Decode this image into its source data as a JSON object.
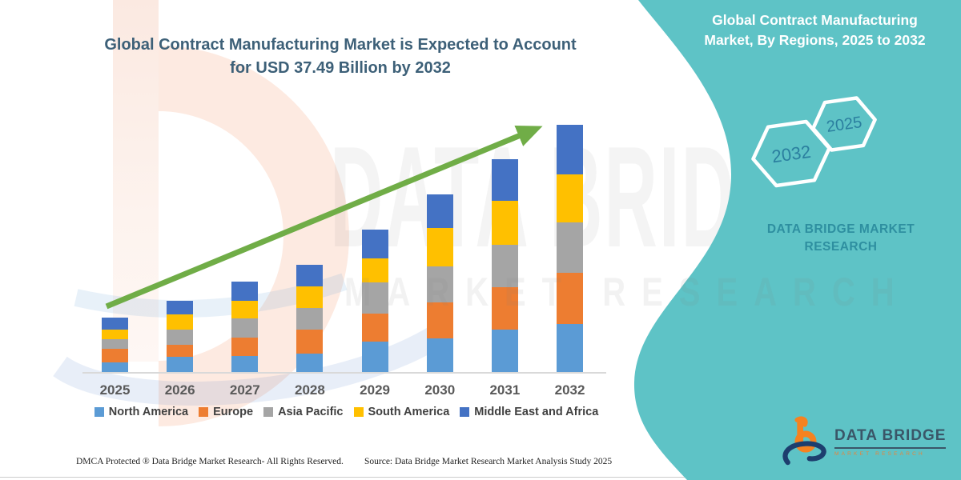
{
  "header": {
    "title_line1": "Global Contract Manufacturing Market is Expected to Account",
    "title_line2": "for USD 37.49 Billion by 2032"
  },
  "chart_data": {
    "type": "bar",
    "stacked": true,
    "title": "Global Contract Manufacturing Market is Expected to Account for USD 37.49 Billion by 2032",
    "unit": "USD Billion",
    "categories": [
      "2025",
      "2026",
      "2027",
      "2028",
      "2029",
      "2030",
      "2031",
      "2032"
    ],
    "series": [
      {
        "name": "North America",
        "color": "#5B9BD5",
        "values": [
          1.46,
          2.31,
          2.43,
          2.79,
          4.61,
          5.1,
          6.43,
          7.28
        ]
      },
      {
        "name": "Europe",
        "color": "#ED7D31",
        "values": [
          2.06,
          1.82,
          2.79,
          3.64,
          4.25,
          5.46,
          6.43,
          7.76
        ]
      },
      {
        "name": "Asia Pacific",
        "color": "#A5A5A5",
        "values": [
          1.46,
          2.31,
          2.91,
          3.28,
          4.73,
          5.46,
          6.43,
          7.64
        ]
      },
      {
        "name": "South America",
        "color": "#FFC000",
        "values": [
          1.46,
          2.31,
          2.67,
          3.28,
          3.64,
          5.82,
          6.67,
          7.28
        ]
      },
      {
        "name": "Middle East and Africa",
        "color": "#4472C4",
        "values": [
          1.82,
          2.06,
          2.91,
          3.28,
          4.37,
          5.1,
          6.31,
          7.53
        ]
      }
    ],
    "totals": [
      8.26,
      10.81,
      13.71,
      16.27,
      21.6,
      26.94,
      32.27,
      37.49
    ],
    "legend_position": "bottom",
    "gridlines": false,
    "trend_arrow": true,
    "trend_arrow_color": "#70AD47"
  },
  "side_panel": {
    "title_line1": "Global Contract Manufacturing",
    "title_line2": "Market, By Regions, 2025 to 2032",
    "hexagons": [
      {
        "label": "2032"
      },
      {
        "label": "2025"
      }
    ],
    "brand_line1": "DATA BRIDGE MARKET",
    "brand_line2": "RESEARCH",
    "accent_color": "#5EC3C6"
  },
  "logo": {
    "name": "DATA BRIDGE",
    "subtitle": "MARKET RESEARCH"
  },
  "watermark": {
    "big_text": "DATA BRIDGE",
    "sub_text": "MARKET RESEARCH"
  },
  "footer": {
    "left": "DMCA Protected ® Data Bridge Market Research-  All Rights Reserved.",
    "source": "Source: Data Bridge Market Research  Market Analysis Study 2025"
  }
}
